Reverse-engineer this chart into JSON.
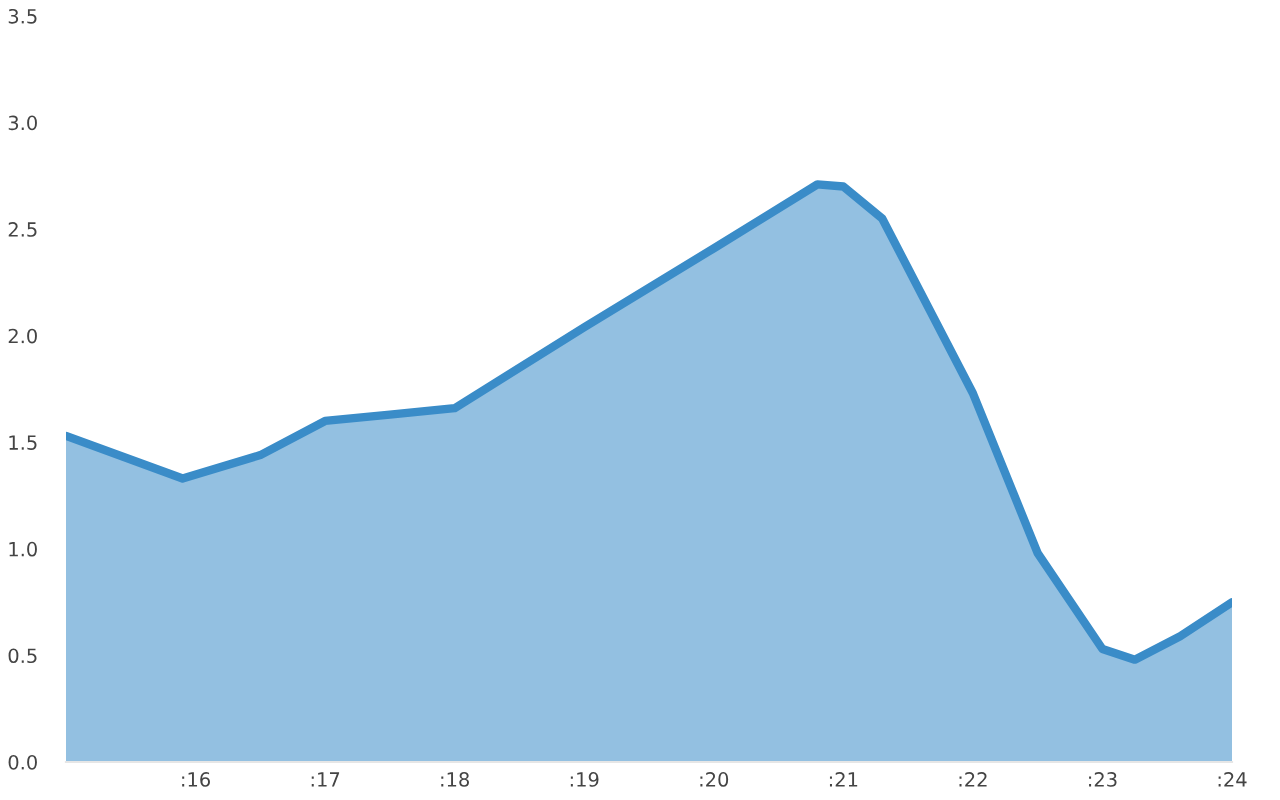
{
  "chart_data": {
    "type": "area",
    "x": [
      15,
      15.9,
      16.5,
      17,
      17.5,
      18,
      19,
      20,
      20.8,
      21,
      21.3,
      22,
      22.5,
      23,
      23.25,
      23.6,
      24
    ],
    "series": [
      {
        "color": "#3a8cc8",
        "values": [
          1.53,
          1.33,
          1.44,
          1.6,
          1.63,
          1.66,
          2.04,
          2.41,
          2.71,
          2.7,
          2.55,
          1.73,
          0.98,
          0.53,
          0.48,
          0.59,
          0.75
        ]
      }
    ],
    "xlim": [
      15,
      24
    ],
    "xticks": [
      {
        "value": 16,
        "label": ":16"
      },
      {
        "value": 17,
        "label": ":17"
      },
      {
        "value": 18,
        "label": ":18"
      },
      {
        "value": 19,
        "label": ":19"
      },
      {
        "value": 20,
        "label": ":20"
      },
      {
        "value": 21,
        "label": ":21"
      },
      {
        "value": 22,
        "label": ":22"
      },
      {
        "value": 23,
        "label": ":23"
      },
      {
        "value": 24,
        "label": ":24"
      }
    ],
    "ylim": [
      0,
      3.5
    ],
    "yticks": [
      {
        "value": 0,
        "label": "0.0"
      },
      {
        "value": 0.5,
        "label": "0.5"
      },
      {
        "value": 1,
        "label": "1.0"
      },
      {
        "value": 1.5,
        "label": "1.5"
      },
      {
        "value": 2,
        "label": "2.0"
      },
      {
        "value": 2.5,
        "label": "2.5"
      },
      {
        "value": 3,
        "label": "3.0"
      },
      {
        "value": 3.5,
        "label": "3.5"
      }
    ],
    "grid": false
  }
}
